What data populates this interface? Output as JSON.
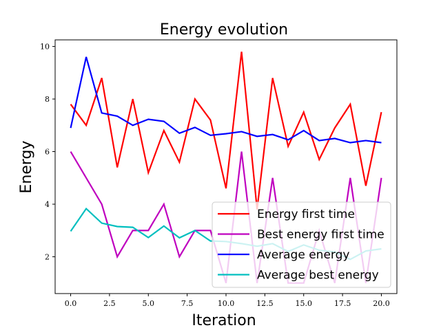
{
  "chart_data": {
    "type": "line",
    "title": "Energy evolution",
    "xlabel": "Iteration",
    "ylabel": "Energy",
    "xlim": [
      -1,
      21
    ],
    "ylim": [
      0.6,
      10.25
    ],
    "xticks": [
      0.0,
      2.5,
      5.0,
      7.5,
      10.0,
      12.5,
      15.0,
      17.5,
      20.0
    ],
    "xtick_labels": [
      "0.0",
      "2.5",
      "5.0",
      "7.5",
      "10.0",
      "12.5",
      "15.0",
      "17.5",
      "20.0"
    ],
    "yticks": [
      2,
      4,
      6,
      8,
      10
    ],
    "ytick_labels": [
      "2",
      "4",
      "6",
      "8",
      "10"
    ],
    "grid": false,
    "legend_position": "lower-right",
    "x": [
      0,
      1,
      2,
      3,
      4,
      5,
      6,
      7,
      8,
      9,
      10,
      11,
      12,
      13,
      14,
      15,
      16,
      17,
      18,
      19,
      20
    ],
    "series": [
      {
        "name": "Energy first time",
        "color": "#ff0000",
        "values": [
          7.8,
          7.0,
          8.8,
          5.4,
          8.0,
          5.2,
          6.8,
          5.6,
          8.0,
          7.2,
          4.6,
          9.8,
          3.8,
          8.8,
          6.2,
          7.5,
          5.7,
          6.9,
          7.8,
          4.7,
          7.5
        ]
      },
      {
        "name": "Best energy first time",
        "color": "#bf00bf",
        "values": [
          6.0,
          5.0,
          4.0,
          2.0,
          3.0,
          3.0,
          4.0,
          2.0,
          3.0,
          3.0,
          1.0,
          6.0,
          1.0,
          5.0,
          1.0,
          1.0,
          3.0,
          1.0,
          5.0,
          1.0,
          5.0
        ]
      },
      {
        "name": "Average energy",
        "color": "#0000ff",
        "values": [
          6.9,
          9.6,
          7.47,
          7.35,
          7.0,
          7.23,
          7.15,
          6.7,
          6.92,
          6.62,
          6.68,
          6.76,
          6.58,
          6.65,
          6.45,
          6.8,
          6.42,
          6.5,
          6.34,
          6.42,
          6.34
        ]
      },
      {
        "name": "Average best energy",
        "color": "#00bfbf",
        "values": [
          2.97,
          3.83,
          3.28,
          3.15,
          3.12,
          2.73,
          3.17,
          2.72,
          3.0,
          2.6,
          2.58,
          2.5,
          2.4,
          2.5,
          2.2,
          2.45,
          2.25,
          2.18,
          1.9,
          2.22,
          2.3
        ]
      }
    ]
  }
}
